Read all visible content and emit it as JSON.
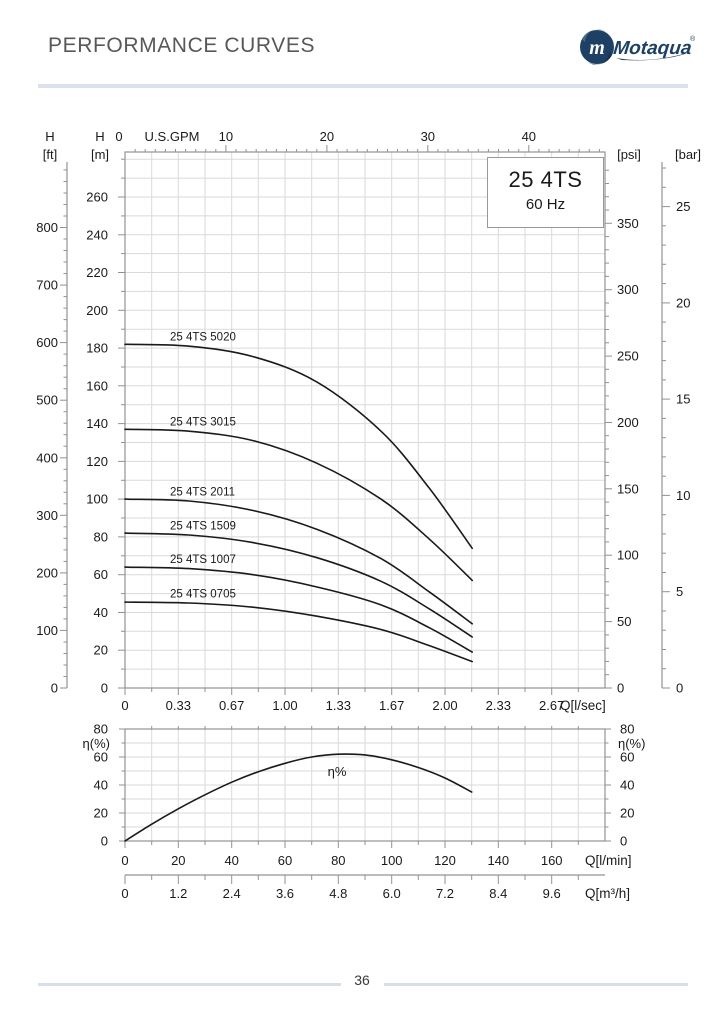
{
  "header": {
    "title": "PERFORMANCE CURVES",
    "brand": "Motaqua"
  },
  "model_box": {
    "model": "25 4TS",
    "frequency": "60 Hz"
  },
  "footer": {
    "page_number": "36"
  },
  "colors": {
    "curve": "#1a1a1a",
    "grid": "#d8dadb",
    "frame": "#909295",
    "tick_text": "#1a1a1a",
    "divider": "#dbe2ee",
    "title_text": "#57585a",
    "logo_navy": "#1d4064"
  },
  "chart_data": [
    {
      "id": "head_chart",
      "type": "line",
      "title": "25 4TS 60 Hz head curves",
      "x_axes": {
        "gpm": {
          "label": "U.S.GPM",
          "ticks": [
            "0",
            "10",
            "20",
            "30",
            "40"
          ],
          "position": "top"
        },
        "lsec": {
          "label": "Q[l/sec]",
          "ticks": [
            "0",
            "0.33",
            "0.67",
            "1.00",
            "1.33",
            "1.67",
            "2.00",
            "2.33",
            "2.67"
          ],
          "position": "bottom"
        }
      },
      "y_axes": {
        "ft": {
          "label": "H",
          "unit": "[ft]",
          "ticks": [
            "0",
            "100",
            "200",
            "300",
            "400",
            "500",
            "600",
            "700",
            "800"
          ]
        },
        "m": {
          "label": "H",
          "unit": "[m]",
          "ticks": [
            "0",
            "20",
            "40",
            "60",
            "80",
            "100",
            "120",
            "140",
            "160",
            "180",
            "200",
            "220",
            "240",
            "260"
          ]
        },
        "psi": {
          "unit": "[psi]",
          "ticks": [
            "0",
            "50",
            "100",
            "150",
            "200",
            "250",
            "300",
            "350"
          ]
        },
        "bar": {
          "unit": "[bar]",
          "ticks": [
            "0",
            "5",
            "10",
            "15",
            "20",
            "25"
          ]
        }
      },
      "units_note": "Q in l/sec, H in m",
      "series": [
        {
          "name": "25 4TS 5020",
          "points": [
            [
              0,
              182
            ],
            [
              0.4,
              181
            ],
            [
              0.8,
              175.5
            ],
            [
              1.2,
              162
            ],
            [
              1.6,
              136
            ],
            [
              1.9,
              106
            ],
            [
              2.17,
              74
            ]
          ]
        },
        {
          "name": "25 4TS 3015",
          "points": [
            [
              0,
              137
            ],
            [
              0.4,
              136
            ],
            [
              0.8,
              131
            ],
            [
              1.2,
              119
            ],
            [
              1.6,
              100
            ],
            [
              1.9,
              79
            ],
            [
              2.17,
              57
            ]
          ]
        },
        {
          "name": "25 4TS 2011",
          "points": [
            [
              0,
              100
            ],
            [
              0.4,
              99
            ],
            [
              0.8,
              94
            ],
            [
              1.2,
              84
            ],
            [
              1.6,
              68.5
            ],
            [
              1.9,
              51
            ],
            [
              2.17,
              34
            ]
          ]
        },
        {
          "name": "25 4TS 1509",
          "points": [
            [
              0,
              82
            ],
            [
              0.4,
              81
            ],
            [
              0.8,
              77
            ],
            [
              1.2,
              69
            ],
            [
              1.6,
              56.5
            ],
            [
              1.9,
              42
            ],
            [
              2.17,
              27
            ]
          ]
        },
        {
          "name": "25 4TS 1007",
          "points": [
            [
              0,
              64
            ],
            [
              0.4,
              63.2
            ],
            [
              0.8,
              60
            ],
            [
              1.2,
              53.5
            ],
            [
              1.6,
              44
            ],
            [
              1.9,
              32
            ],
            [
              2.17,
              19
            ]
          ]
        },
        {
          "name": "25 4TS 0705",
          "points": [
            [
              0,
              45.5
            ],
            [
              0.4,
              45
            ],
            [
              0.8,
              42.8
            ],
            [
              1.2,
              38
            ],
            [
              1.6,
              31
            ],
            [
              1.9,
              22.5
            ],
            [
              2.17,
              14
            ]
          ]
        }
      ]
    },
    {
      "id": "efficiency_chart",
      "type": "line",
      "ylabel": "η(%)",
      "y_ticks": [
        "0",
        "20",
        "40",
        "60",
        "80"
      ],
      "x_axes": {
        "lmin": {
          "label": "Q[l/min]",
          "ticks": [
            "0",
            "20",
            "40",
            "60",
            "80",
            "100",
            "120",
            "140",
            "160"
          ]
        },
        "m3h": {
          "label": "Q[m³/h]",
          "ticks": [
            "0",
            "1.2",
            "2.4",
            "3.6",
            "4.8",
            "6.0",
            "7.2",
            "8.4",
            "9.6"
          ]
        }
      },
      "curve_label": "η%",
      "series": [
        {
          "name": "η%",
          "points": [
            [
              0,
              0
            ],
            [
              10,
              12
            ],
            [
              20,
              23
            ],
            [
              30,
              33
            ],
            [
              40,
              42
            ],
            [
              50,
              49.5
            ],
            [
              60,
              55.5
            ],
            [
              70,
              60
            ],
            [
              80,
              62
            ],
            [
              90,
              61.5
            ],
            [
              100,
              58
            ],
            [
              110,
              52.5
            ],
            [
              120,
              45
            ],
            [
              130,
              35
            ]
          ]
        }
      ]
    }
  ]
}
